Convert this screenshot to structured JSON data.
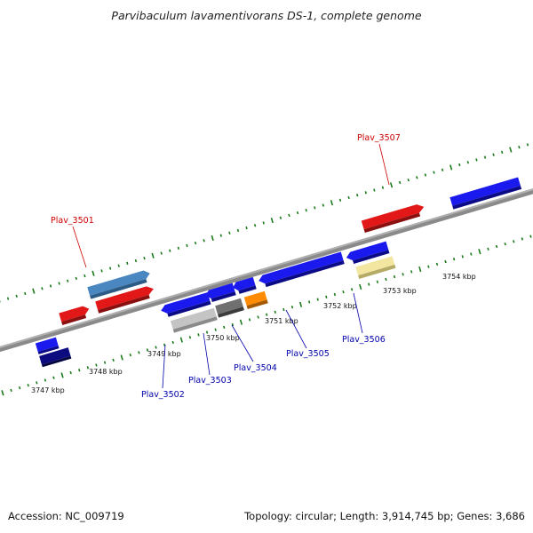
{
  "title": "Parvibaculum lavamentivorans DS-1, complete genome",
  "footer": {
    "accession": "Accession: NC_009719",
    "topology": "Topology: circular; Length: 3,914,745 bp; Genes: 3,686"
  },
  "scale_labels": [
    "3747 kbp",
    "3748 kbp",
    "3749 kbp",
    "3750 kbp",
    "3751 kbp",
    "3752 kbp",
    "3753 kbp",
    "3754 kbp"
  ],
  "gene_labels": [
    {
      "id": "plav_3501",
      "text": "Plav_3501",
      "strand": "forward",
      "color": "#cc0000"
    },
    {
      "id": "plav_3507",
      "text": "Plav_3507",
      "strand": "forward",
      "color": "#cc0000"
    },
    {
      "id": "plav_3502",
      "text": "Plav_3502",
      "strand": "reverse",
      "color": "#0000aa"
    },
    {
      "id": "plav_3503",
      "text": "Plav_3503",
      "strand": "reverse",
      "color": "#0000aa"
    },
    {
      "id": "plav_3504",
      "text": "Plav_3504",
      "strand": "reverse",
      "color": "#0000aa"
    },
    {
      "id": "plav_3505",
      "text": "Plav_3505",
      "strand": "reverse",
      "color": "#0000aa"
    },
    {
      "id": "plav_3506",
      "text": "Plav_3506",
      "strand": "reverse",
      "color": "#0000aa"
    }
  ],
  "colors": {
    "red_gene": "#e21818",
    "blue_gene": "#1a1aee",
    "steelblue_gene": "#4a86c0",
    "navy_gene": "#0c0c80",
    "silver_gene": "#c4c4c4",
    "gray_gene": "#707070",
    "orange_gene": "#ff8c00",
    "khaki_gene": "#f2e6a0",
    "backbone": "#8a8a8a",
    "tick": "#1a7a1a"
  }
}
